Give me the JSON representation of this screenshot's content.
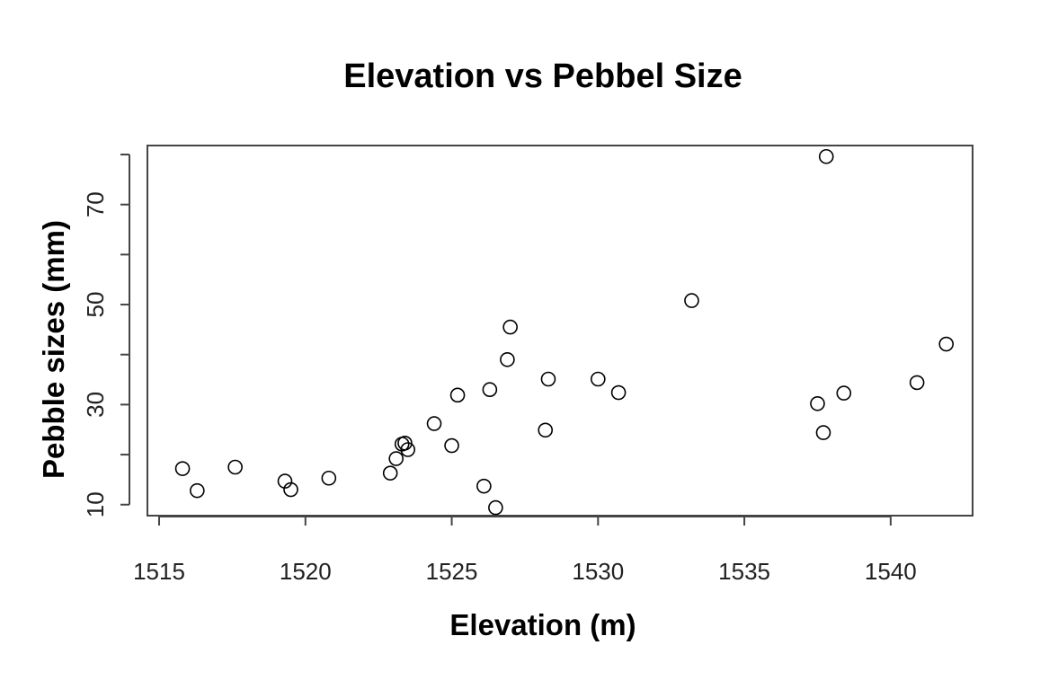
{
  "chart_data": {
    "type": "scatter",
    "title": "Elevation vs Pebbel Size",
    "xlabel": "Elevation (m)",
    "ylabel": "Pebble sizes (mm)",
    "xlim": [
      1514.6,
      1542.8
    ],
    "ylim": [
      7.8,
      81.8
    ],
    "xticks": [
      1515,
      1520,
      1525,
      1530,
      1535,
      1540
    ],
    "yticks": [
      10,
      20,
      30,
      40,
      50,
      60,
      70,
      80
    ],
    "yticklabels": [
      "10",
      "",
      "30",
      "",
      "50",
      "",
      "70",
      ""
    ],
    "grid": false,
    "legend": "none",
    "points": [
      {
        "x": 1515.8,
        "y": 17.2
      },
      {
        "x": 1516.3,
        "y": 12.8
      },
      {
        "x": 1517.6,
        "y": 17.5
      },
      {
        "x": 1519.3,
        "y": 14.7
      },
      {
        "x": 1519.5,
        "y": 13.0
      },
      {
        "x": 1520.8,
        "y": 15.3
      },
      {
        "x": 1522.9,
        "y": 16.3
      },
      {
        "x": 1523.1,
        "y": 19.2
      },
      {
        "x": 1523.3,
        "y": 22.1
      },
      {
        "x": 1523.4,
        "y": 22.3
      },
      {
        "x": 1523.5,
        "y": 21.0
      },
      {
        "x": 1524.4,
        "y": 26.2
      },
      {
        "x": 1525.0,
        "y": 21.8
      },
      {
        "x": 1525.2,
        "y": 31.9
      },
      {
        "x": 1526.1,
        "y": 13.7
      },
      {
        "x": 1526.3,
        "y": 33.0
      },
      {
        "x": 1526.5,
        "y": 9.4
      },
      {
        "x": 1526.9,
        "y": 39.0
      },
      {
        "x": 1527.0,
        "y": 45.5
      },
      {
        "x": 1528.2,
        "y": 24.9
      },
      {
        "x": 1528.3,
        "y": 35.1
      },
      {
        "x": 1530.0,
        "y": 35.1
      },
      {
        "x": 1530.7,
        "y": 32.4
      },
      {
        "x": 1533.2,
        "y": 50.8
      },
      {
        "x": 1537.5,
        "y": 30.2
      },
      {
        "x": 1537.7,
        "y": 24.4
      },
      {
        "x": 1537.8,
        "y": 79.6
      },
      {
        "x": 1538.4,
        "y": 32.3
      },
      {
        "x": 1540.9,
        "y": 34.4
      },
      {
        "x": 1541.9,
        "y": 42.1
      }
    ]
  }
}
